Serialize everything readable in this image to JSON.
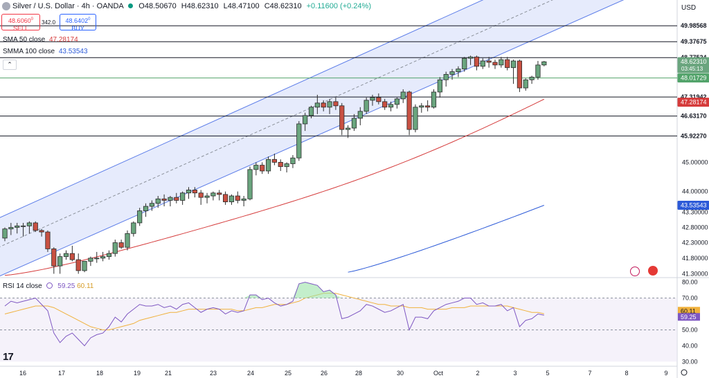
{
  "header": {
    "symbol": "Silver / U.S. Dollar · 4h · OANDA",
    "open": "O48.50670",
    "high": "H48.62310",
    "low": "L48.47100",
    "close": "C48.62310",
    "change": "+0.11600 (+0.24%)"
  },
  "trade": {
    "sell_price": "48.6060",
    "sell_sup": "0",
    "sell_label": "SELL",
    "spread": "342.0",
    "buy_price": "48.6402",
    "buy_sup": "0",
    "buy_label": "BUY"
  },
  "indicators": {
    "sma50_label": "SMA 50 close",
    "sma50_value": "47.28174",
    "sma100_label": "SMMA 100 close",
    "sma100_value": "43.53543"
  },
  "currency": "USD",
  "rsi": {
    "label": "RSI 14 close",
    "value": "59.25",
    "ma_value": "60.11"
  },
  "colors": {
    "up": "#6aa57e",
    "down": "#c85042",
    "sma50": "#d53b3b",
    "sma100": "#2c5ad8",
    "rsi": "#7e57c2",
    "rsi_ma": "#f0b13c",
    "channel_fill": "#dde4fb",
    "channel_line": "#5b7ce8"
  },
  "chart_data": [
    {
      "type": "candlestick",
      "title": "Silver / U.S. Dollar · 4h · OANDA",
      "x_ticks": [
        "16",
        "17",
        "18",
        "19",
        "21",
        "23",
        "24",
        "25",
        "26",
        "28",
        "30",
        "Oct",
        "2",
        "3",
        "5",
        "7",
        "8",
        "9"
      ],
      "y_ticks": [
        41.3,
        41.8,
        42.3,
        42.8,
        43.3,
        44.0,
        45.0
      ],
      "ylim": [
        41.2,
        50.5
      ],
      "scale": "log",
      "price_labels": [
        {
          "value": "49.98568",
          "style": "line"
        },
        {
          "value": "49.37675",
          "style": "line"
        },
        {
          "value": "48.77524",
          "style": "line"
        },
        {
          "value": "48.62310",
          "sub": "03:45:13",
          "style": "current"
        },
        {
          "value": "48.01729",
          "style": "green"
        },
        {
          "value": "47.31942",
          "style": "line"
        },
        {
          "value": "47.28174",
          "style": "red"
        },
        {
          "value": "46.63170",
          "style": "line"
        },
        {
          "value": "45.92270",
          "style": "line"
        },
        {
          "value": "43.53543",
          "style": "blue"
        }
      ],
      "horizontal_levels": [
        49.98568,
        49.37675,
        48.77524,
        48.01729,
        47.31942,
        46.6317,
        45.9227
      ],
      "channel": {
        "start_index": 0,
        "end_index": 73,
        "lower_start": 41.3,
        "lower_end": 48.1,
        "upper_start": 43.2,
        "upper_end": 50.45
      },
      "candles": [
        [
          42.45,
          42.8,
          42.35,
          42.75
        ],
        [
          42.75,
          42.95,
          42.55,
          42.8
        ],
        [
          42.8,
          42.95,
          42.6,
          42.85
        ],
        [
          42.85,
          42.95,
          42.5,
          42.85
        ],
        [
          42.85,
          43.0,
          42.6,
          42.95
        ],
        [
          42.95,
          43.0,
          42.65,
          42.7
        ],
        [
          42.7,
          42.75,
          42.5,
          42.65
        ],
        [
          42.65,
          42.7,
          42.0,
          42.1
        ],
        [
          42.1,
          42.15,
          41.3,
          41.55
        ],
        [
          41.55,
          41.95,
          41.3,
          41.85
        ],
        [
          41.85,
          42.05,
          41.75,
          41.95
        ],
        [
          41.95,
          42.2,
          41.7,
          41.75
        ],
        [
          41.75,
          41.95,
          41.3,
          41.4
        ],
        [
          41.4,
          41.7,
          41.35,
          41.7
        ],
        [
          41.7,
          41.85,
          41.55,
          41.8
        ],
        [
          41.8,
          42.0,
          41.65,
          41.8
        ],
        [
          41.8,
          42.0,
          41.7,
          41.85
        ],
        [
          41.85,
          42.05,
          41.75,
          41.95
        ],
        [
          41.95,
          42.4,
          41.85,
          42.3
        ],
        [
          42.3,
          42.4,
          42.1,
          42.15
        ],
        [
          42.15,
          42.7,
          42.05,
          42.6
        ],
        [
          42.6,
          43.0,
          42.5,
          42.95
        ],
        [
          42.95,
          43.45,
          42.85,
          43.35
        ],
        [
          43.35,
          43.6,
          43.15,
          43.5
        ],
        [
          43.5,
          43.7,
          43.35,
          43.6
        ],
        [
          43.6,
          43.85,
          43.45,
          43.75
        ],
        [
          43.75,
          43.9,
          43.5,
          43.7
        ],
        [
          43.7,
          43.85,
          43.5,
          43.8
        ],
        [
          43.8,
          43.95,
          43.6,
          43.7
        ],
        [
          43.7,
          44.0,
          43.55,
          43.95
        ],
        [
          43.95,
          44.15,
          43.75,
          44.05
        ],
        [
          44.05,
          44.15,
          43.8,
          43.95
        ],
        [
          43.95,
          44.05,
          43.55,
          43.8
        ],
        [
          43.8,
          43.95,
          43.6,
          43.85
        ],
        [
          43.85,
          44.0,
          43.7,
          43.95
        ],
        [
          43.95,
          44.05,
          43.7,
          43.9
        ],
        [
          43.9,
          44.0,
          43.55,
          43.65
        ],
        [
          43.65,
          43.9,
          43.55,
          43.85
        ],
        [
          43.85,
          44.0,
          43.6,
          43.7
        ],
        [
          43.7,
          43.85,
          43.5,
          43.75
        ],
        [
          43.75,
          44.85,
          43.7,
          44.75
        ],
        [
          44.75,
          45.0,
          44.55,
          44.9
        ],
        [
          44.9,
          45.0,
          44.6,
          44.7
        ],
        [
          44.7,
          45.2,
          44.6,
          45.1
        ],
        [
          45.1,
          45.3,
          44.9,
          45.0
        ],
        [
          45.0,
          45.1,
          44.7,
          44.85
        ],
        [
          44.85,
          45.0,
          44.65,
          44.95
        ],
        [
          44.95,
          45.25,
          44.8,
          45.15
        ],
        [
          45.15,
          46.45,
          45.05,
          46.35
        ],
        [
          46.35,
          46.75,
          46.1,
          46.65
        ],
        [
          46.65,
          47.0,
          46.55,
          46.95
        ],
        [
          46.95,
          47.4,
          46.7,
          47.1
        ],
        [
          47.1,
          47.2,
          46.8,
          46.95
        ],
        [
          46.95,
          47.25,
          46.7,
          47.15
        ],
        [
          47.15,
          47.3,
          46.85,
          47.0
        ],
        [
          47.0,
          47.1,
          45.95,
          46.15
        ],
        [
          46.15,
          46.3,
          45.85,
          46.2
        ],
        [
          46.2,
          46.7,
          46.1,
          46.55
        ],
        [
          46.55,
          46.95,
          46.3,
          46.8
        ],
        [
          46.8,
          47.3,
          46.7,
          47.2
        ],
        [
          47.2,
          47.4,
          47.0,
          47.3
        ],
        [
          47.3,
          47.45,
          47.05,
          47.15
        ],
        [
          47.15,
          47.25,
          46.85,
          46.95
        ],
        [
          46.95,
          47.15,
          46.8,
          47.05
        ],
        [
          47.05,
          47.3,
          46.9,
          47.25
        ],
        [
          47.25,
          47.6,
          47.1,
          47.5
        ],
        [
          47.5,
          47.55,
          45.95,
          46.15
        ],
        [
          46.15,
          47.05,
          46.05,
          46.95
        ],
        [
          46.95,
          47.1,
          46.75,
          47.0
        ],
        [
          47.0,
          47.2,
          46.8,
          46.95
        ],
        [
          46.95,
          47.6,
          46.9,
          47.5
        ],
        [
          47.5,
          48.05,
          47.3,
          47.95
        ],
        [
          47.95,
          48.25,
          47.7,
          48.15
        ],
        [
          48.15,
          48.35,
          47.95,
          48.25
        ],
        [
          48.25,
          48.45,
          48.05,
          48.35
        ],
        [
          48.35,
          48.8,
          48.25,
          48.75
        ],
        [
          48.75,
          48.85,
          48.5,
          48.8
        ],
        [
          48.8,
          48.85,
          48.3,
          48.45
        ],
        [
          48.45,
          48.75,
          48.35,
          48.65
        ],
        [
          48.65,
          48.8,
          48.4,
          48.6
        ],
        [
          48.6,
          48.7,
          48.35,
          48.5
        ],
        [
          48.5,
          48.8,
          48.4,
          48.7
        ],
        [
          48.7,
          48.8,
          48.3,
          48.4
        ],
        [
          48.4,
          48.7,
          47.8,
          48.65
        ],
        [
          48.65,
          48.7,
          47.5,
          47.65
        ],
        [
          47.65,
          48.0,
          47.55,
          47.95
        ],
        [
          47.95,
          48.1,
          47.8,
          48.05
        ],
        [
          48.05,
          48.65,
          47.95,
          48.5
        ],
        [
          48.5,
          48.65,
          48.45,
          48.62
        ]
      ]
    },
    {
      "type": "line",
      "title": "RSI 14 close",
      "y_ticks": [
        30.0,
        40.0,
        50.0,
        60.0,
        70.0,
        80.0
      ],
      "ylim": [
        28,
        82
      ],
      "bands": [
        50,
        70
      ],
      "series": [
        {
          "name": "RSI 14 close",
          "last": 59.25,
          "values": [
            65,
            68,
            67,
            68,
            69,
            70,
            66,
            62,
            48,
            42,
            46,
            48,
            44,
            40,
            45,
            47,
            48,
            52,
            58,
            55,
            60,
            63,
            66,
            65,
            65,
            66,
            64,
            65,
            63,
            66,
            67,
            64,
            61,
            63,
            64,
            63,
            60,
            62,
            61,
            62,
            72,
            72,
            69,
            70,
            67,
            65,
            66,
            68,
            79,
            80,
            79,
            78,
            74,
            75,
            72,
            57,
            58,
            60,
            62,
            66,
            65,
            63,
            61,
            62,
            64,
            66,
            50,
            58,
            58,
            57,
            62,
            64,
            66,
            67,
            68,
            70,
            70,
            66,
            67,
            65,
            65,
            66,
            62,
            64,
            52,
            56,
            57,
            60,
            59.25
          ]
        },
        {
          "name": "RSI MA",
          "last": 60.11,
          "values": [
            60,
            61,
            62,
            63,
            64,
            65,
            65,
            65,
            64,
            62,
            60,
            58,
            56,
            54,
            52,
            51,
            50,
            50,
            51,
            52,
            53,
            54,
            56,
            57,
            58,
            59,
            60,
            61,
            61,
            62,
            63,
            63,
            63,
            63,
            63,
            63,
            63,
            63,
            62,
            62,
            63,
            64,
            64,
            65,
            66,
            66,
            66,
            67,
            68,
            70,
            71,
            72,
            73,
            73,
            73,
            72,
            71,
            70,
            69,
            68,
            67,
            66,
            66,
            65,
            65,
            65,
            64,
            64,
            64,
            63,
            63,
            63,
            63,
            64,
            64,
            64,
            65,
            65,
            65,
            65,
            65,
            65,
            65,
            64,
            63,
            62,
            61,
            61,
            60.11
          ]
        }
      ]
    }
  ]
}
